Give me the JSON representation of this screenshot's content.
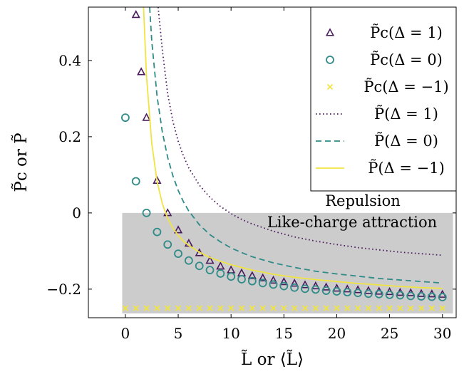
{
  "chart_data": {
    "type": "scatter",
    "xlabel": "L̃ or ⟨L̃⟩",
    "ylabel": "P̃c or P̃",
    "xlim": [
      -3.5,
      31.3
    ],
    "ylim": [
      -0.275,
      0.54
    ],
    "xticks": [
      0,
      5,
      10,
      15,
      20,
      25,
      30
    ],
    "yticks": [
      -0.2,
      0,
      0.2,
      0.4
    ],
    "xtick_labels": [
      "0",
      "5",
      "10",
      "15",
      "20",
      "25",
      "30"
    ],
    "ytick_labels": [
      "−0.2",
      "0",
      "0.2",
      "0.4"
    ],
    "grid": false,
    "legend_position": "top-right",
    "annotations": {
      "repulsion": "Repulsion",
      "attraction": "Like-charge attraction"
    },
    "shaded_region": {
      "x": [
        -0.3,
        31
      ],
      "y": [
        -0.275,
        0
      ],
      "color": "#cccccc"
    },
    "series": [
      {
        "name": "P̃c(Δ = 1)",
        "kind": "scatter",
        "marker": "triangle",
        "color": "#4a1a5e",
        "x": [
          1,
          1.5,
          2,
          3,
          4,
          5,
          6,
          7,
          8,
          9,
          10,
          11,
          12,
          13,
          14,
          15,
          16,
          17,
          18,
          19,
          20,
          21,
          22,
          23,
          24,
          25,
          26,
          27,
          28,
          29,
          30
        ],
        "y": [
          0.52,
          0.37,
          0.25,
          0.085,
          0.0,
          -0.045,
          -0.08,
          -0.105,
          -0.125,
          -0.14,
          -0.15,
          -0.158,
          -0.165,
          -0.171,
          -0.177,
          -0.181,
          -0.185,
          -0.189,
          -0.192,
          -0.195,
          -0.198,
          -0.2,
          -0.202,
          -0.204,
          -0.206,
          -0.207,
          -0.209,
          -0.21,
          -0.212,
          -0.213,
          -0.214
        ]
      },
      {
        "name": "P̃c(Δ = 0)",
        "kind": "scatter",
        "marker": "circle",
        "color": "#2e8b88",
        "x": [
          0,
          1,
          2,
          3,
          4,
          5,
          6,
          7,
          8,
          9,
          10,
          11,
          12,
          13,
          14,
          15,
          16,
          17,
          18,
          19,
          20,
          21,
          22,
          23,
          24,
          25,
          26,
          27,
          28,
          29,
          30
        ],
        "y": [
          0.25,
          0.083,
          0.0,
          -0.05,
          -0.083,
          -0.107,
          -0.125,
          -0.139,
          -0.15,
          -0.159,
          -0.167,
          -0.174,
          -0.179,
          -0.184,
          -0.188,
          -0.192,
          -0.196,
          -0.199,
          -0.201,
          -0.204,
          -0.206,
          -0.208,
          -0.21,
          -0.212,
          -0.213,
          -0.215,
          -0.216,
          -0.218,
          -0.219,
          -0.22,
          -0.221
        ]
      },
      {
        "name": "P̃c(Δ = −1)",
        "kind": "scatter",
        "marker": "x",
        "color": "#f0e442",
        "x": [
          0,
          1,
          2,
          3,
          4,
          5,
          6,
          7,
          8,
          9,
          10,
          11,
          12,
          13,
          14,
          15,
          16,
          17,
          18,
          19,
          20,
          21,
          22,
          23,
          24,
          25,
          26,
          27,
          28,
          29,
          30
        ],
        "y": [
          -0.25,
          -0.25,
          -0.25,
          -0.25,
          -0.25,
          -0.25,
          -0.25,
          -0.25,
          -0.25,
          -0.25,
          -0.25,
          -0.25,
          -0.25,
          -0.25,
          -0.25,
          -0.25,
          -0.25,
          -0.25,
          -0.25,
          -0.25,
          -0.25,
          -0.25,
          -0.25,
          -0.25,
          -0.25,
          -0.25,
          -0.25,
          -0.25,
          -0.25,
          -0.25,
          -0.25
        ]
      },
      {
        "name": "P̃(Δ = 1)",
        "kind": "line",
        "dash": "dotted",
        "color": "#4a1a5e",
        "x": [
          3.1,
          3.5,
          4,
          4.5,
          5,
          5.5,
          6,
          7,
          8,
          9,
          10,
          11,
          12,
          14,
          16,
          18,
          20,
          22,
          24,
          26,
          28,
          30
        ],
        "y": [
          0.54,
          0.427,
          0.313,
          0.24,
          0.188,
          0.149,
          0.118,
          0.073,
          0.041,
          0.017,
          -0.002,
          -0.017,
          -0.029,
          -0.048,
          -0.063,
          -0.074,
          -0.083,
          -0.091,
          -0.097,
          -0.103,
          -0.107,
          -0.111
        ]
      },
      {
        "name": "P̃(Δ = 0)",
        "kind": "line",
        "dash": "dashed",
        "color": "#2e8b88",
        "x": [
          2.3,
          2.5,
          3,
          3.5,
          4,
          4.5,
          5,
          5.5,
          6,
          7,
          8,
          9,
          10,
          11,
          12,
          14,
          16,
          18,
          20,
          22,
          24,
          26,
          28,
          30
        ],
        "y": [
          0.54,
          0.45,
          0.306,
          0.212,
          0.146,
          0.097,
          0.059,
          0.029,
          0.005,
          -0.031,
          -0.057,
          -0.076,
          -0.092,
          -0.104,
          -0.115,
          -0.131,
          -0.143,
          -0.153,
          -0.16,
          -0.166,
          -0.172,
          -0.176,
          -0.18,
          -0.184
        ]
      },
      {
        "name": "P̃(Δ = −1)",
        "kind": "line",
        "dash": "solid",
        "color": "#f0e442",
        "x": [
          1.72,
          2,
          2.5,
          3,
          3.5,
          4,
          4.5,
          5,
          5.5,
          6,
          7,
          8,
          9,
          10,
          12,
          14,
          16,
          18,
          20,
          22,
          24,
          26,
          28,
          30
        ],
        "y": [
          0.54,
          0.359,
          0.182,
          0.083,
          0.024,
          -0.014,
          -0.04,
          -0.059,
          -0.074,
          -0.085,
          -0.103,
          -0.117,
          -0.127,
          -0.136,
          -0.15,
          -0.161,
          -0.169,
          -0.175,
          -0.18,
          -0.185,
          -0.189,
          -0.193,
          -0.196,
          -0.198
        ]
      }
    ]
  }
}
